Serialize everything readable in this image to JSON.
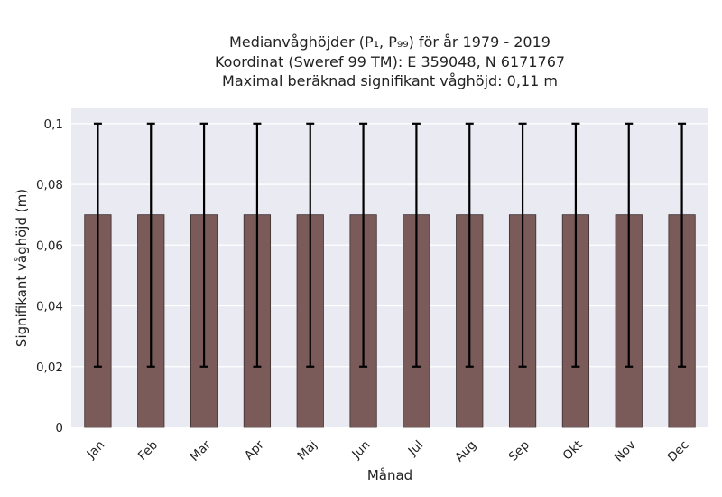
{
  "chart_data": {
    "type": "bar",
    "title_lines": [
      "Medianvåghöjder (P₁, P₉₉) för år 1979 - 2019",
      "Koordinat (Sweref 99 TM): E 359048, N 6171767",
      "Maximal beräknad signifikant våghöjd: 0,11 m"
    ],
    "xlabel": "Månad",
    "ylabel": "Signifikant våghöjd (m)",
    "categories": [
      "Jan",
      "Feb",
      "Mar",
      "Apr",
      "Maj",
      "Jun",
      "Jul",
      "Aug",
      "Sep",
      "Okt",
      "Nov",
      "Dec"
    ],
    "values": [
      0.07,
      0.07,
      0.07,
      0.07,
      0.07,
      0.07,
      0.07,
      0.07,
      0.07,
      0.07,
      0.07,
      0.07
    ],
    "p1": [
      0.02,
      0.02,
      0.02,
      0.02,
      0.02,
      0.02,
      0.02,
      0.02,
      0.02,
      0.02,
      0.02,
      0.02
    ],
    "p99": [
      0.1,
      0.1,
      0.1,
      0.1,
      0.1,
      0.1,
      0.1,
      0.1,
      0.1,
      0.1,
      0.1,
      0.1
    ],
    "ylim": [
      0,
      0.1
    ],
    "yticks": [
      0,
      0.02,
      0.04,
      0.06,
      0.08,
      0.1
    ],
    "ytick_labels": [
      "0",
      "0,02",
      "0,04",
      "0,06",
      "0,08",
      "0,1"
    ],
    "grid": true,
    "colors": {
      "bar": "#7b5a5a",
      "bar_edge": "#3a2e2e",
      "errorbar": "#000000",
      "plot_background": "#eaeaf2",
      "grid": "#ffffff"
    }
  }
}
